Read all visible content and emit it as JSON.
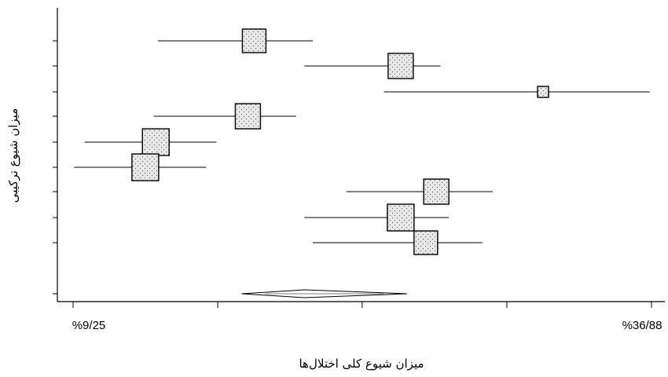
{
  "chart_data": {
    "type": "forest",
    "xlabel": "میزان شیوع کلی اختلال‌ها",
    "ylabel": "میزان شیوع ترکیبی",
    "xlim": [
      9.25,
      36.88
    ],
    "x_tick_labels": [
      "%9/25",
      "%36/88"
    ],
    "x_minor_tick_values": [
      16.16,
      23.06,
      29.97
    ],
    "studies": [
      {
        "estimate": 17.9,
        "lower": 13.3,
        "upper": 20.7,
        "weight": 30
      },
      {
        "estimate": 24.9,
        "lower": 20.3,
        "upper": 26.8,
        "weight": 32
      },
      {
        "estimate": 31.7,
        "lower": 24.1,
        "upper": 36.8,
        "weight": 14
      },
      {
        "estimate": 17.6,
        "lower": 13.1,
        "upper": 19.9,
        "weight": 32
      },
      {
        "estimate": 13.2,
        "lower": 9.8,
        "upper": 16.1,
        "weight": 34
      },
      {
        "estimate": 12.7,
        "lower": 9.3,
        "upper": 15.6,
        "weight": 34
      },
      {
        "estimate": 26.6,
        "lower": 22.3,
        "upper": 29.3,
        "weight": 32
      },
      {
        "estimate": 24.9,
        "lower": 20.3,
        "upper": 27.2,
        "weight": 34
      },
      {
        "estimate": 26.1,
        "lower": 20.7,
        "upper": 28.8,
        "weight": 30
      }
    ],
    "pooled": {
      "estimate": 20.3,
      "lower": 17.3,
      "upper": 25.2
    },
    "colors": {
      "line": "#000000",
      "box_fill": "#e8e8e8",
      "box_dots": "#555555"
    }
  }
}
